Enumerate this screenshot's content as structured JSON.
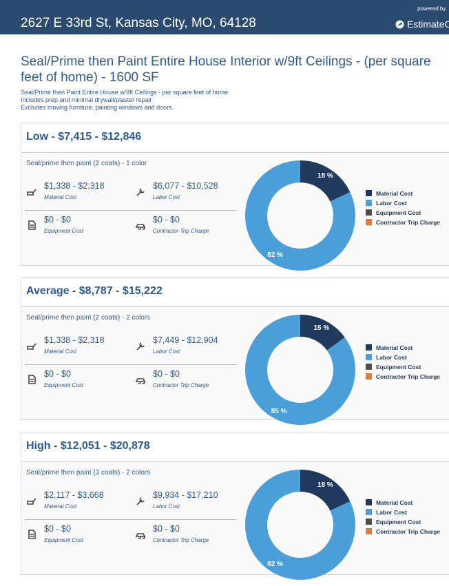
{
  "header": {
    "address": "2627 E 33rd St, Kansas City, MO, 64128",
    "powered_by": "powered by",
    "brand": "EstimateON"
  },
  "title": "Seal/Prime then Paint Entire House Interior w/9ft Ceilings - (per square feet of home) - 1600 SF",
  "description": [
    "Seal/Prime then Paint Entire House w/9ft Ceilings - per square feet of home",
    "Includes prep and minimal drywall/plaster repair",
    "Excludes moving furniture, painting windows and doors."
  ],
  "tiers": [
    {
      "heading": "Low - $7,415 - $12,846",
      "subtitle": "Seal/prime then paint (2 coats) - 1 color",
      "costs": [
        {
          "range": "$1,338 - $2,318",
          "label": "Material Cost"
        },
        {
          "range": "$6,077 - $10,528",
          "label": "Labor Cost"
        },
        {
          "range": "$0 - $0",
          "label": "Equipment Cost"
        },
        {
          "range": "$0 - $0",
          "label": "Contractor Trip Charge"
        }
      ],
      "chart": {
        "type": "pie",
        "segments": [
          {
            "name": "Material Cost",
            "color": "#1f3a5c",
            "value": 18,
            "value_label": "18 %"
          },
          {
            "name": "Labor Cost",
            "color": "#4a9fd8",
            "value": 82,
            "value_label": "82 %"
          },
          {
            "name": "Equipment Cost",
            "color": "#4d4d4d"
          },
          {
            "name": "Contractor Trip Charge",
            "color": "#e07b39"
          }
        ]
      }
    },
    {
      "heading": "Average - $8,787 - $15,222",
      "subtitle": "Seal/prime then paint (2 coats) - 2 colors",
      "costs": [
        {
          "range": "$1,338 - $2,318",
          "label": "Material Cost"
        },
        {
          "range": "$7,449 - $12,904",
          "label": "Labor Cost"
        },
        {
          "range": "$0 - $0",
          "label": "Equipment Cost"
        },
        {
          "range": "$0 - $0",
          "label": "Contractor Trip Charge"
        }
      ],
      "chart": {
        "type": "pie",
        "segments": [
          {
            "name": "Material Cost",
            "color": "#1f3a5c",
            "value": 15,
            "value_label": "15 %"
          },
          {
            "name": "Labor Cost",
            "color": "#4a9fd8",
            "value": 85,
            "value_label": "85 %"
          },
          {
            "name": "Equipment Cost",
            "color": "#4d4d4d"
          },
          {
            "name": "Contractor Trip Charge",
            "color": "#e07b39"
          }
        ]
      }
    },
    {
      "heading": "High - $12,051 - $20,878",
      "subtitle": "Seal/prime then paint (3 coats) - 2 colors",
      "costs": [
        {
          "range": "$2,117 - $3,668",
          "label": "Material Cost"
        },
        {
          "range": "$9,934 - $17,210",
          "label": "Labor Cost"
        },
        {
          "range": "$0 - $0",
          "label": "Equipment Cost"
        },
        {
          "range": "$0 - $0",
          "label": "Contractor Trip Charge"
        }
      ],
      "chart": {
        "type": "pie",
        "segments": [
          {
            "name": "Material Cost",
            "color": "#1f3a5c",
            "value": 18,
            "value_label": "18 %"
          },
          {
            "name": "Labor Cost",
            "color": "#4a9fd8",
            "value": 82,
            "value_label": "82 %"
          },
          {
            "name": "Equipment Cost",
            "color": "#4d4d4d"
          },
          {
            "name": "Contractor Trip Charge",
            "color": "#e07b39"
          }
        ]
      }
    }
  ]
}
